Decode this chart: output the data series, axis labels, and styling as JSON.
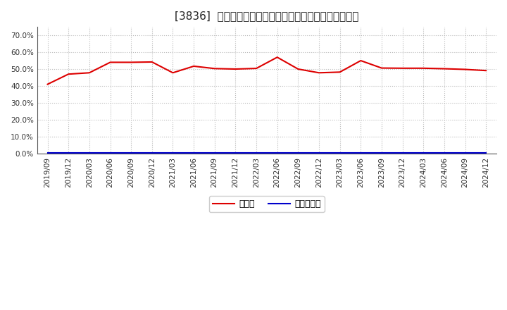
{
  "title": "[3836]  現顔金、有利子負債の総資産に対する比率の推移",
  "x_labels": [
    "2019/09",
    "2019/12",
    "2020/03",
    "2020/06",
    "2020/09",
    "2020/12",
    "2021/03",
    "2021/06",
    "2021/09",
    "2021/12",
    "2022/03",
    "2022/06",
    "2022/09",
    "2022/12",
    "2023/03",
    "2023/06",
    "2023/09",
    "2023/12",
    "2024/03",
    "2024/06",
    "2024/09",
    "2024/12"
  ],
  "cash_ratio": [
    0.41,
    0.47,
    0.478,
    0.54,
    0.54,
    0.542,
    0.478,
    0.517,
    0.503,
    0.5,
    0.504,
    0.57,
    0.5,
    0.478,
    0.482,
    0.55,
    0.506,
    0.505,
    0.505,
    0.502,
    0.498,
    0.491
  ],
  "debt_ratio": [
    0.005,
    0.005,
    0.005,
    0.005,
    0.005,
    0.005,
    0.005,
    0.005,
    0.005,
    0.005,
    0.005,
    0.005,
    0.005,
    0.005,
    0.005,
    0.005,
    0.005,
    0.005,
    0.005,
    0.005,
    0.005,
    0.005
  ],
  "cash_color": "#dd0000",
  "debt_color": "#0000cc",
  "background_color": "#ffffff",
  "plot_bg_color": "#ffffff",
  "grid_color": "#bbbbbb",
  "ylim": [
    0.0,
    0.75
  ],
  "yticks": [
    0.0,
    0.1,
    0.2,
    0.3,
    0.4,
    0.5,
    0.6,
    0.7
  ],
  "legend_cash": "現顔金",
  "legend_debt": "有利子負債",
  "title_fontsize": 11,
  "tick_fontsize": 7.5,
  "legend_fontsize": 9,
  "line_width": 1.5
}
